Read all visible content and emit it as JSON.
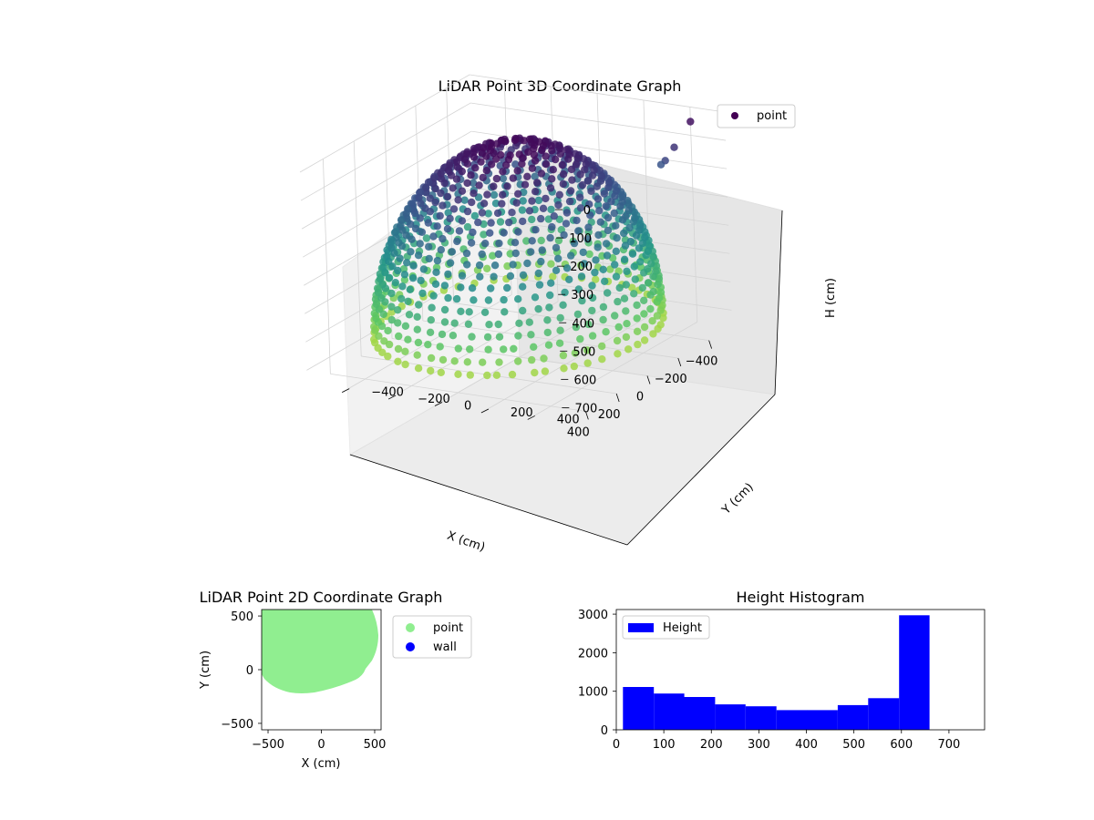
{
  "figure": {
    "background": "#ffffff"
  },
  "chart_data": [
    {
      "type": "scatter",
      "projection": "3d",
      "title": "LiDAR Point 3D Coordinate Graph",
      "xlabel": "X (cm)",
      "ylabel": "Y (cm)",
      "zlabel": "H (cm)",
      "x_ticks": [
        "−400",
        "−200",
        "0",
        "200",
        "400"
      ],
      "y_ticks": [
        "−400",
        "−200",
        "0",
        "200",
        "400"
      ],
      "z_ticks": [
        "0",
        "100",
        "200",
        "300",
        "400",
        "500",
        "600",
        "700"
      ],
      "xlim": [
        -550,
        550
      ],
      "ylim": [
        -550,
        550
      ],
      "zlim": [
        0,
        760
      ],
      "z_inverted": true,
      "colormap": "viridis",
      "legend": {
        "labels": [
          "point"
        ],
        "placement": "top-right",
        "marker_color": "#440154"
      },
      "grid": true
    },
    {
      "type": "scatter",
      "title": "LiDAR Point 2D Coordinate Graph",
      "xlabel": "X (cm)",
      "ylabel": "Y (cm)",
      "xlim": [
        -560,
        560
      ],
      "ylim": [
        -560,
        560
      ],
      "x_ticks": [
        "−500",
        "0",
        "500"
      ],
      "y_ticks": [
        "−500",
        "0",
        "500"
      ],
      "series": [
        {
          "name": "point",
          "color": "#90ee90"
        },
        {
          "name": "wall",
          "color": "#0000ff"
        }
      ],
      "legend": {
        "placement": "outside-right"
      },
      "grid": false
    },
    {
      "type": "bar",
      "subtype": "histogram",
      "title": "Height Histogram",
      "xlabel": "",
      "ylabel": "",
      "bin_edges": [
        14,
        79,
        143,
        208,
        272,
        337,
        401,
        466,
        530,
        595,
        659
      ],
      "values": [
        1110,
        940,
        850,
        660,
        610,
        510,
        510,
        640,
        820,
        2970
      ],
      "xlim": [
        0,
        775
      ],
      "ylim": [
        0,
        3120
      ],
      "x_ticks": [
        "0",
        "100",
        "200",
        "300",
        "400",
        "500",
        "600",
        "700"
      ],
      "y_ticks": [
        "0",
        "1000",
        "2000",
        "3000"
      ],
      "series": [
        {
          "name": "Height",
          "color": "#0000ff"
        }
      ],
      "legend": {
        "placement": "top-left"
      },
      "grid": false
    }
  ]
}
